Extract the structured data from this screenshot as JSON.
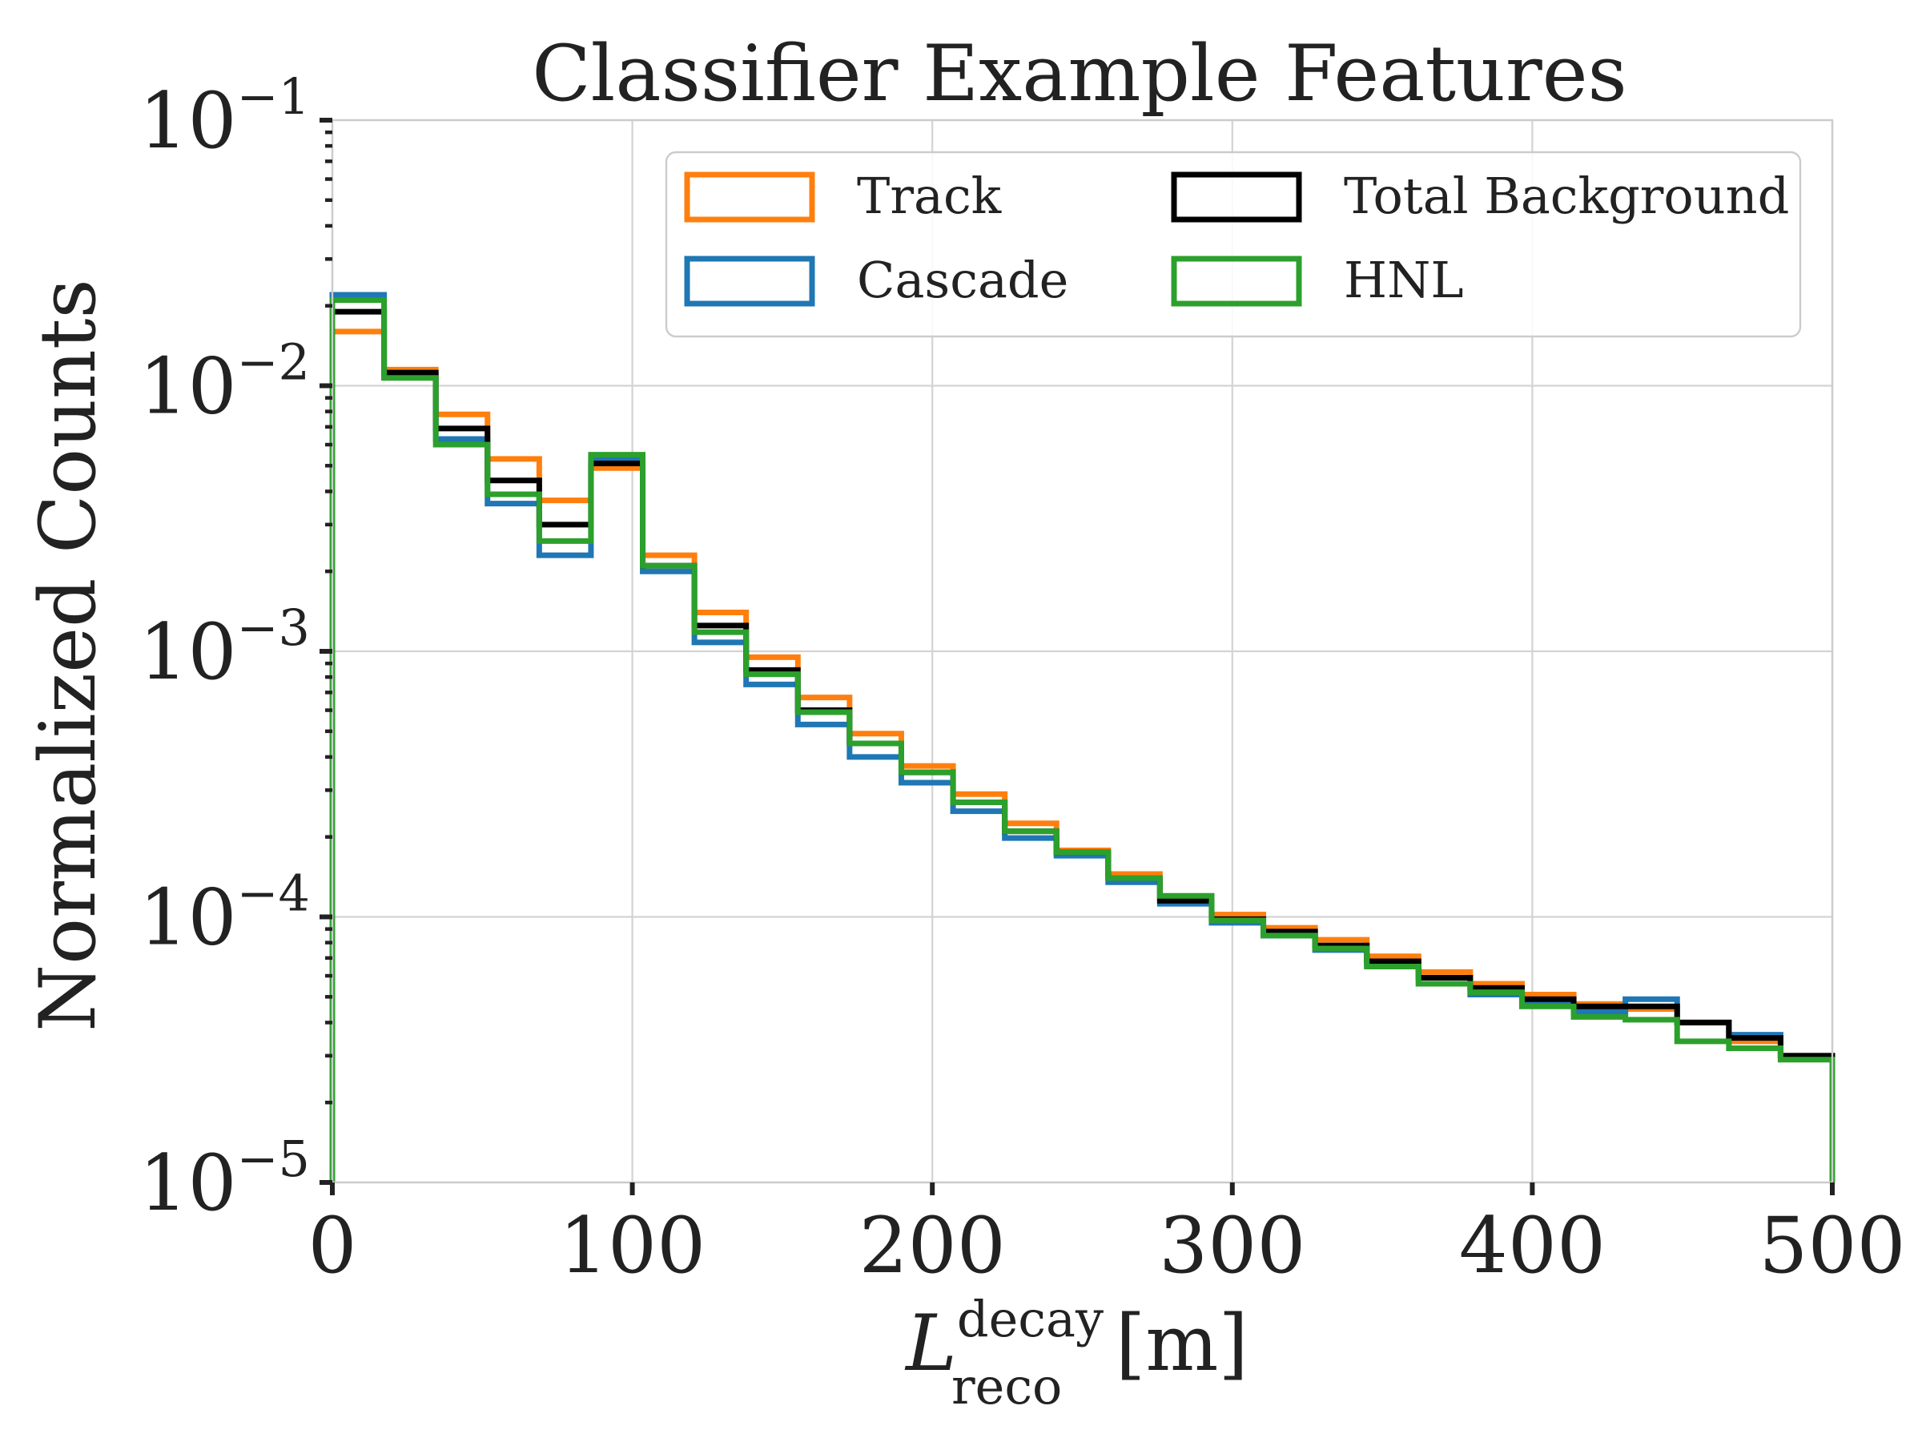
{
  "chart_data": {
    "type": "histogram-step",
    "title": "Classifier Example Features",
    "xlabel": {
      "main": "L",
      "sup": "decay",
      "sub": "reco",
      "unit": " [m]"
    },
    "ylabel": "Normalized Counts",
    "xlim": [
      0,
      500
    ],
    "ylim": [
      1e-05,
      0.1
    ],
    "yscale": "log",
    "grid": true,
    "legend_position": "upper right",
    "x_ticks": [
      "0",
      "100",
      "200",
      "300",
      "400",
      "500"
    ],
    "y_ticks": [
      {
        "base": "10",
        "exp": "−1",
        "value": 0.1
      },
      {
        "base": "10",
        "exp": "−2",
        "value": 0.01
      },
      {
        "base": "10",
        "exp": "−3",
        "value": 0.001
      },
      {
        "base": "10",
        "exp": "−4",
        "value": 0.0001
      },
      {
        "base": "10",
        "exp": "−5",
        "value": 1e-05
      }
    ],
    "bin_edges": [
      0,
      17.24,
      34.48,
      51.72,
      68.97,
      86.21,
      103.45,
      120.69,
      137.93,
      155.17,
      172.41,
      189.66,
      206.9,
      224.14,
      241.38,
      258.62,
      275.86,
      293.1,
      310.34,
      327.59,
      344.83,
      362.07,
      379.31,
      396.55,
      413.79,
      431.03,
      448.28,
      465.52,
      482.76,
      500
    ],
    "series": [
      {
        "name": "Track",
        "color": "#ff7f0e",
        "values": [
          0.016,
          0.0115,
          0.0078,
          0.0053,
          0.0037,
          0.0049,
          0.0023,
          0.0014,
          0.00095,
          0.00067,
          0.00049,
          0.00037,
          0.00029,
          0.000225,
          0.000178,
          0.000145,
          0.000118,
          0.000102,
          9.1e-05,
          8.2e-05,
          7.1e-05,
          6.2e-05,
          5.6e-05,
          5.1e-05,
          4.7e-05,
          4.5e-05,
          4e-05,
          3.4e-05,
          3e-05
        ]
      },
      {
        "name": "Cascade",
        "color": "#1f77b4",
        "values": [
          0.022,
          0.0108,
          0.0063,
          0.0036,
          0.0023,
          0.0053,
          0.002,
          0.00108,
          0.00075,
          0.00053,
          0.0004,
          0.00032,
          0.00025,
          0.000198,
          0.00017,
          0.000135,
          0.000112,
          9.5e-05,
          8.5e-05,
          7.5e-05,
          6.6e-05,
          5.6e-05,
          5.1e-05,
          4.7e-05,
          4.4e-05,
          4.9e-05,
          4e-05,
          3.6e-05,
          3e-05
        ]
      },
      {
        "name": "Total Background",
        "color": "#000000",
        "values": [
          0.019,
          0.0112,
          0.0069,
          0.0044,
          0.003,
          0.0051,
          0.0021,
          0.00125,
          0.00085,
          0.0006,
          0.00045,
          0.00035,
          0.00027,
          0.00021,
          0.000175,
          0.00014,
          0.000115,
          9.8e-05,
          8.8e-05,
          7.8e-05,
          6.8e-05,
          5.9e-05,
          5.4e-05,
          4.9e-05,
          4.6e-05,
          4.6e-05,
          4e-05,
          3.5e-05,
          3e-05
        ]
      },
      {
        "name": "HNL",
        "color": "#2ca02c",
        "values": [
          0.021,
          0.0107,
          0.006,
          0.0039,
          0.0026,
          0.0055,
          0.0021,
          0.00118,
          0.00082,
          0.00059,
          0.00045,
          0.00035,
          0.00027,
          0.00021,
          0.000175,
          0.00014,
          0.00012,
          9.7e-05,
          8.5e-05,
          7.6e-05,
          6.5e-05,
          5.6e-05,
          5.2e-05,
          4.6e-05,
          4.2e-05,
          4.1e-05,
          3.4e-05,
          3.2e-05,
          2.9e-05
        ]
      }
    ]
  }
}
